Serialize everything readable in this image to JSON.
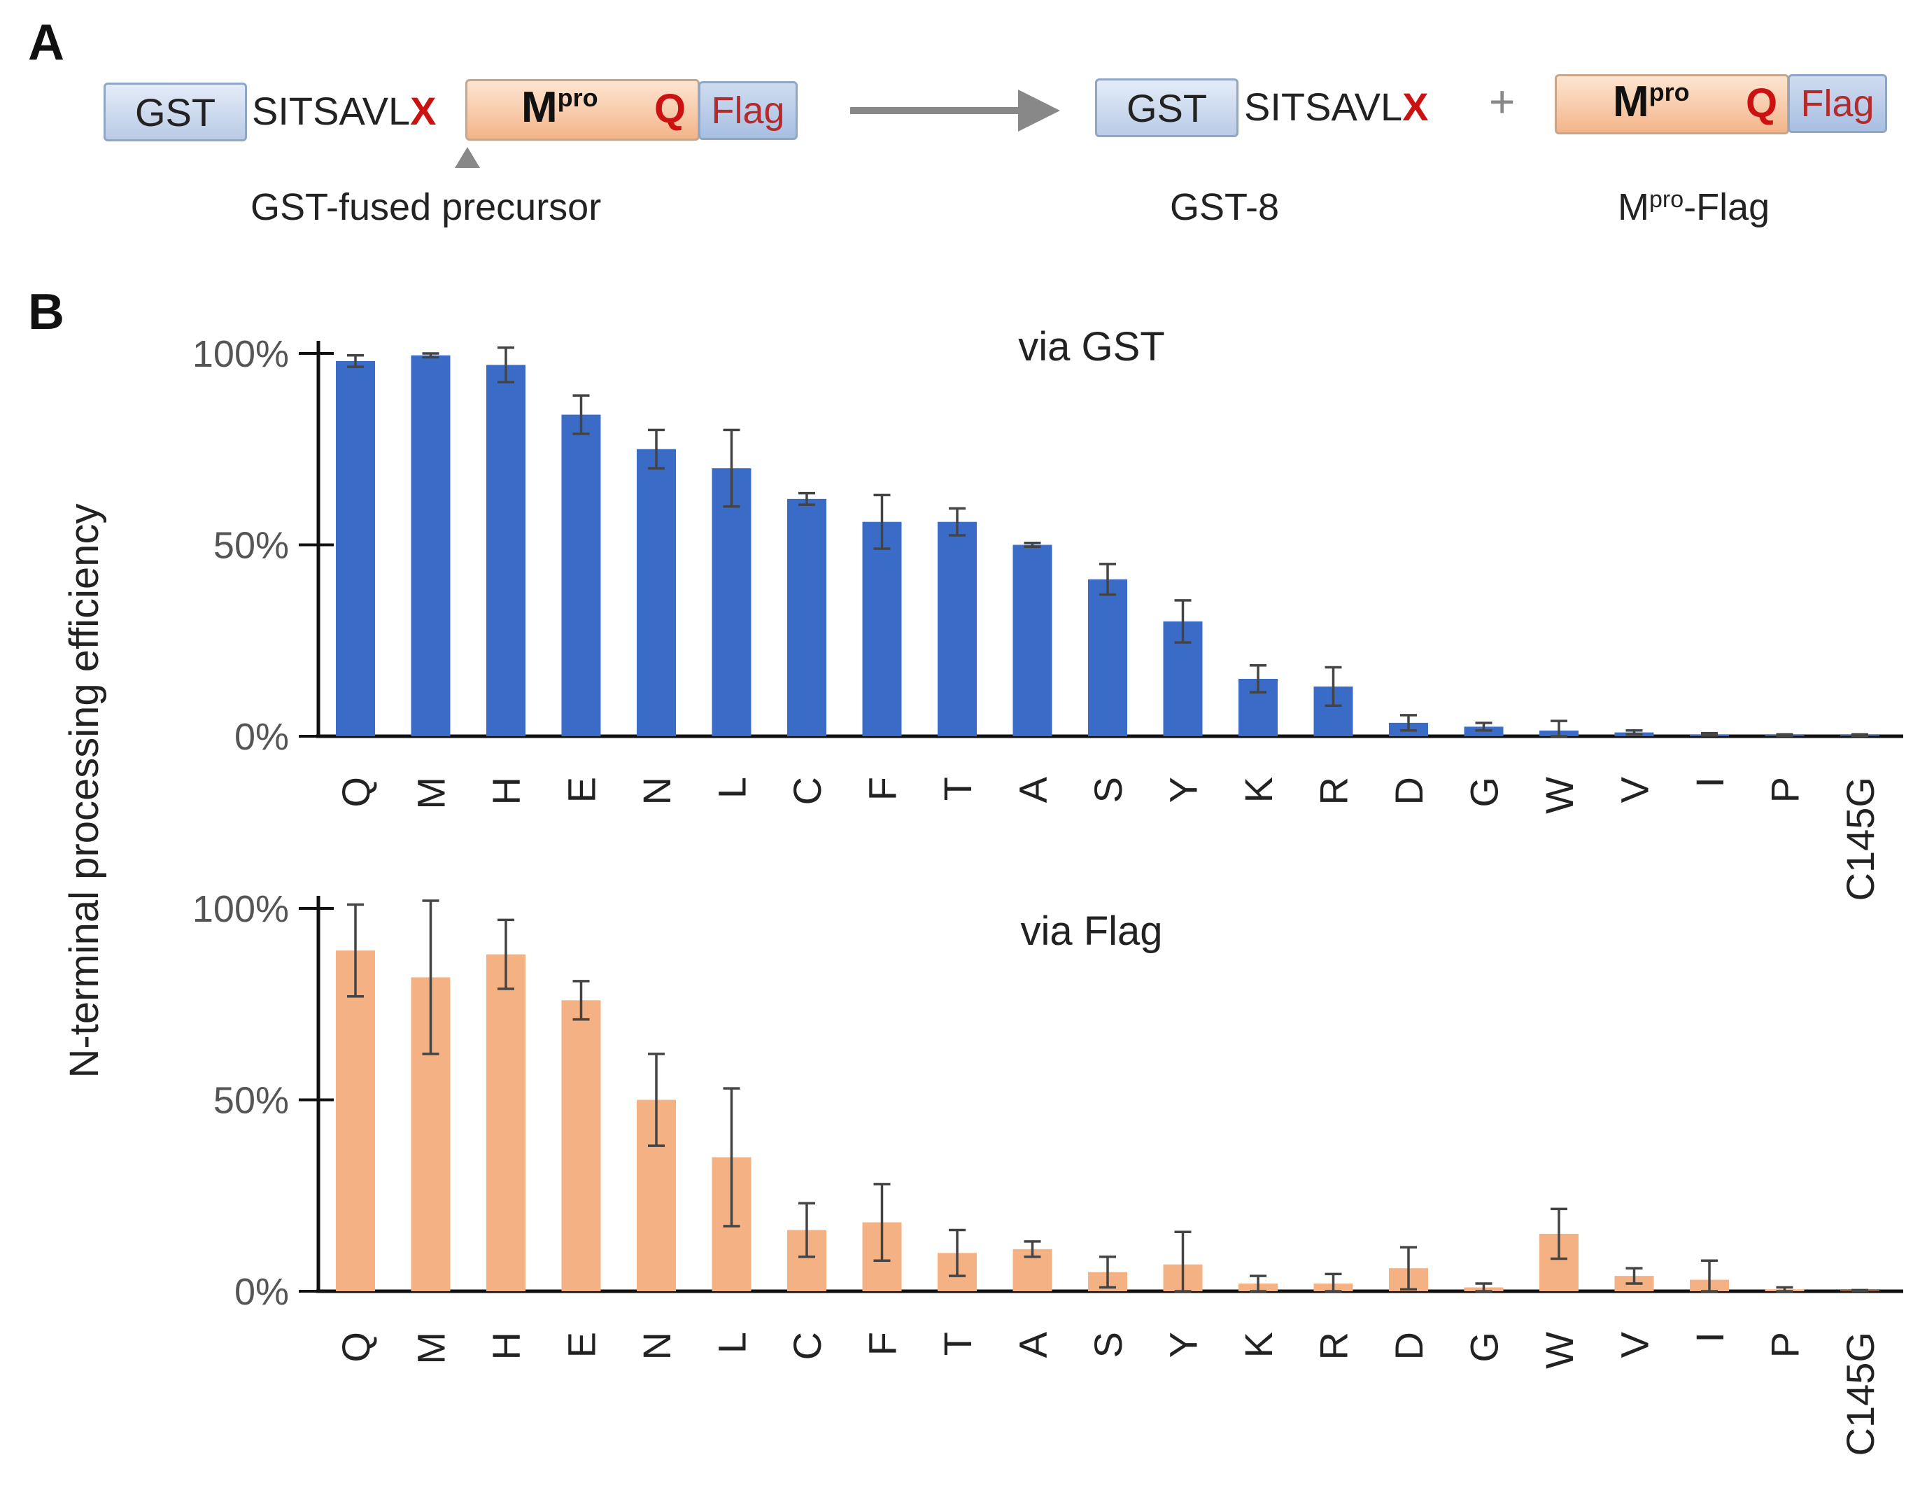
{
  "panel_a": {
    "letter": "A",
    "precursor": {
      "gst": "GST",
      "seq": "SITSAVL",
      "x": "X",
      "mpro": "M",
      "mpro_sup": "pro",
      "q": "Q",
      "flag": "Flag",
      "caption": "GST-fused precursor"
    },
    "product1": {
      "gst": "GST",
      "seq": "SITSAVL",
      "x": "X",
      "caption": "GST-8"
    },
    "plus": "+",
    "product2": {
      "mpro": "M",
      "mpro_sup": "pro",
      "q": "Q",
      "flag": "Flag",
      "caption_main": "M",
      "caption_sup": "pro",
      "caption_rest": "-Flag"
    },
    "colors": {
      "x": "#cc1111",
      "arrow": "#888888"
    }
  },
  "panel_b": {
    "letter": "B",
    "ylabel": "N-terminal processing efficiency"
  },
  "chart_data": [
    {
      "type": "bar",
      "title": "via GST",
      "color": "#3a6cc7",
      "categories": [
        "Q",
        "M",
        "H",
        "E",
        "N",
        "L",
        "C",
        "F",
        "T",
        "A",
        "S",
        "Y",
        "K",
        "R",
        "D",
        "G",
        "W",
        "V",
        "I",
        "P",
        "C145G"
      ],
      "values": [
        98,
        99.5,
        97,
        84,
        75,
        70,
        62,
        56,
        56,
        50,
        41,
        30,
        15,
        13,
        3.5,
        2.5,
        1.5,
        1,
        0.5,
        0.3,
        0.3
      ],
      "errors": [
        1.5,
        0.5,
        4.5,
        5,
        5,
        10,
        1.5,
        7,
        3.5,
        0.5,
        4,
        5.5,
        3.5,
        5,
        2,
        1,
        2.5,
        0.5,
        0.3,
        0.2,
        0.2
      ],
      "yticks": [
        0,
        50,
        100
      ],
      "yticklabels": [
        "0%",
        "50%",
        "100%"
      ],
      "ylim": [
        0,
        100
      ],
      "xlabel": "",
      "ylabel": "N-terminal processing efficiency"
    },
    {
      "type": "bar",
      "title": "via Flag",
      "color": "#f4b183",
      "categories": [
        "Q",
        "M",
        "H",
        "E",
        "N",
        "L",
        "C",
        "F",
        "T",
        "A",
        "S",
        "Y",
        "K",
        "R",
        "D",
        "G",
        "W",
        "V",
        "I",
        "P",
        "C145G"
      ],
      "values": [
        89,
        82,
        88,
        76,
        50,
        35,
        16,
        18,
        10,
        11,
        5,
        7,
        2,
        2,
        6,
        1,
        15,
        4,
        3,
        0.5,
        0.2
      ],
      "errors": [
        12,
        20,
        9,
        5,
        12,
        18,
        7,
        10,
        6,
        2,
        4,
        8.5,
        2,
        2.5,
        5.5,
        1,
        6.5,
        2,
        5,
        0.5,
        0.1
      ],
      "yticks": [
        0,
        50,
        100
      ],
      "yticklabels": [
        "0%",
        "50%",
        "100%"
      ],
      "ylim": [
        0,
        100
      ],
      "xlabel": "",
      "ylabel": "N-terminal processing efficiency"
    }
  ]
}
